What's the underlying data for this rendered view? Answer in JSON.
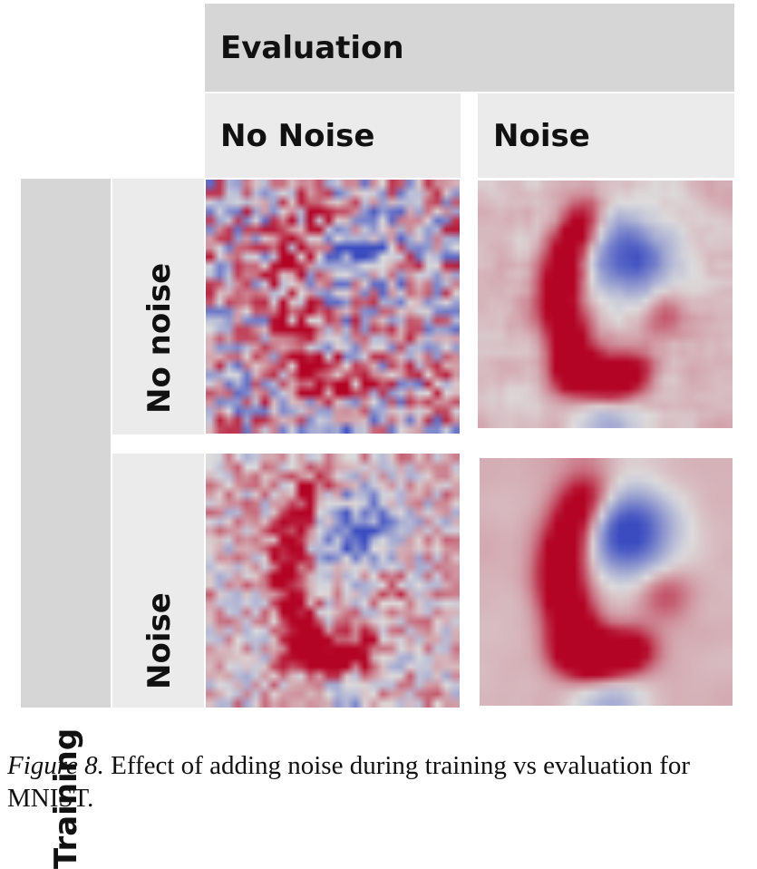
{
  "header": {
    "evaluation": "Evaluation",
    "col_no_noise": "No Noise",
    "col_noise": "Noise"
  },
  "side": {
    "training": "Training",
    "row_no_noise": "No noise",
    "row_noise": "Noise"
  },
  "caption": {
    "figure_label": "Figure 8.",
    "text": " Effect of adding noise during training vs evaluation for MNIST."
  },
  "colors": {
    "header_dark": "#d6d6d6",
    "header_light": "#ebebeb",
    "map_red": "#b40426",
    "map_neutral": "#dddcdc",
    "map_blue": "#3b4cc0"
  }
}
